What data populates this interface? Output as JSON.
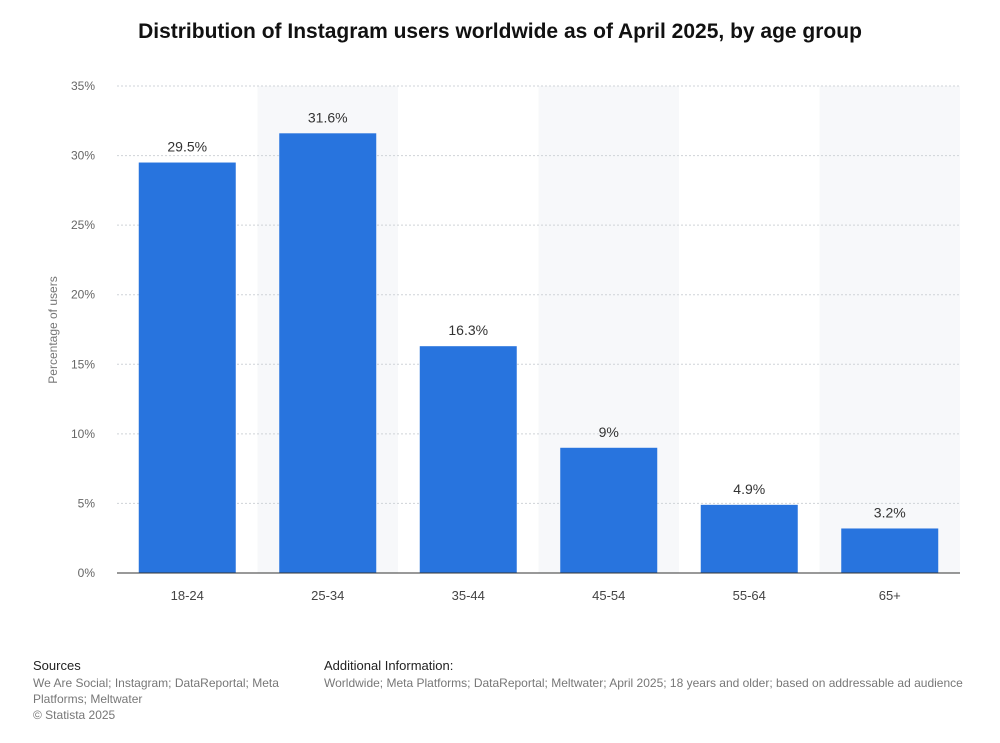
{
  "chart_data": {
    "type": "bar",
    "title": "Distribution of Instagram users worldwide as of April 2025, by age group",
    "categories": [
      "18-24",
      "25-34",
      "35-44",
      "45-54",
      "55-64",
      "65+"
    ],
    "values": [
      29.5,
      31.6,
      16.3,
      9,
      4.9,
      3.2
    ],
    "value_labels": [
      "29.5%",
      "31.6%",
      "16.3%",
      "9%",
      "4.9%",
      "3.2%"
    ],
    "ylabel": "Percentage of users",
    "xlabel": "",
    "ylim": [
      0,
      35
    ],
    "yticks": [
      0,
      5,
      10,
      15,
      20,
      25,
      30,
      35
    ],
    "ytick_labels": [
      "0%",
      "5%",
      "10%",
      "15%",
      "20%",
      "25%",
      "30%",
      "35%"
    ],
    "grid": true,
    "bar_color": "#2874de"
  },
  "footer": {
    "sources_heading": "Sources",
    "sources_lines": [
      "We Are Social; Instagram; DataReportal; Meta",
      "Platforms; Meltwater"
    ],
    "copyright": "© Statista 2025",
    "additional_heading": "Additional Information:",
    "additional_text": "Worldwide; Meta Platforms; DataReportal; Meltwater; April 2025; 18 years and older; based on addressable ad audience"
  }
}
